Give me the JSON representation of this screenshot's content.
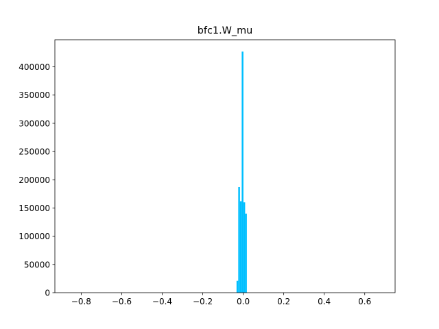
{
  "chart_data": {
    "type": "bar",
    "title": "bfc1.W_mu",
    "xlabel": "",
    "ylabel": "",
    "xlim": [
      -0.93,
      0.75
    ],
    "ylim": [
      0,
      448000
    ],
    "x_ticks": [
      -0.8,
      -0.6,
      -0.4,
      -0.2,
      0.0,
      0.2,
      0.4,
      0.6
    ],
    "x_tick_labels": [
      "−0.8",
      "−0.6",
      "−0.4",
      "−0.2",
      "0.0",
      "0.2",
      "0.4",
      "0.6"
    ],
    "y_ticks": [
      0,
      50000,
      100000,
      150000,
      200000,
      250000,
      300000,
      350000,
      400000
    ],
    "y_tick_labels": [
      "0",
      "50000",
      "100000",
      "150000",
      "200000",
      "250000",
      "300000",
      "350000",
      "400000"
    ],
    "grid": false,
    "bar_color": "#00bfff",
    "bins": [
      {
        "x0": -0.033,
        "x1": -0.0245,
        "value": 21000
      },
      {
        "x0": -0.0245,
        "x1": -0.016,
        "value": 187000
      },
      {
        "x0": -0.016,
        "x1": -0.0075,
        "value": 162000
      },
      {
        "x0": -0.0075,
        "x1": 0.001,
        "value": 427000
      },
      {
        "x0": 0.001,
        "x1": 0.0095,
        "value": 160000
      },
      {
        "x0": 0.0095,
        "x1": 0.018,
        "value": 140000
      }
    ]
  }
}
